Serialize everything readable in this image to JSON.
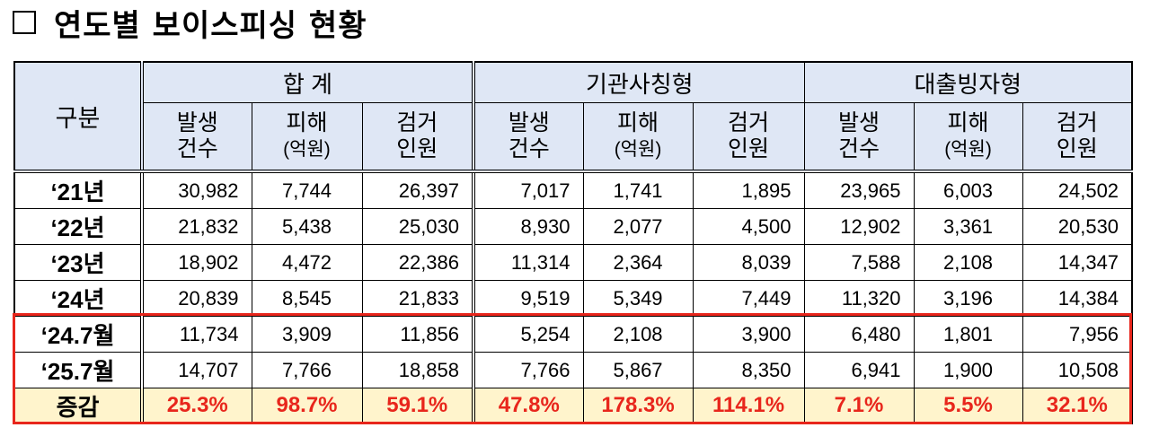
{
  "title": {
    "text": "연도별 보이스피싱 현황"
  },
  "header": {
    "row_label": "구분",
    "groups": [
      "합 계",
      "기관사칭형",
      "대출빙자형"
    ],
    "sub": [
      {
        "l1": "발생",
        "l2": "건수"
      },
      {
        "l1": "피해",
        "l2": "(억원)"
      },
      {
        "l1": "검거",
        "l2": "인원"
      }
    ]
  },
  "rows": [
    {
      "label": "‘21년",
      "values": [
        "30,982",
        "7,744",
        "26,397",
        "7,017",
        "1,741",
        "1,895",
        "23,965",
        "6,003",
        "24,502"
      ]
    },
    {
      "label": "‘22년",
      "values": [
        "21,832",
        "5,438",
        "25,030",
        "8,930",
        "2,077",
        "4,500",
        "12,902",
        "3,361",
        "20,530"
      ]
    },
    {
      "label": "‘23년",
      "values": [
        "18,902",
        "4,472",
        "22,386",
        "11,314",
        "2,364",
        "8,039",
        "7,588",
        "2,108",
        "14,347"
      ]
    },
    {
      "label": "‘24년",
      "values": [
        "20,839",
        "8,545",
        "21,833",
        "9,519",
        "5,349",
        "7,449",
        "11,320",
        "3,196",
        "14,384"
      ]
    },
    {
      "label": "‘24.7월",
      "values": [
        "11,734",
        "3,909",
        "11,856",
        "5,254",
        "2,108",
        "3,900",
        "6,480",
        "1,801",
        "7,956"
      ]
    },
    {
      "label": "‘25.7월",
      "values": [
        "14,707",
        "7,766",
        "18,858",
        "7,766",
        "5,867",
        "8,350",
        "6,941",
        "1,900",
        "10,508"
      ]
    }
  ],
  "total": {
    "label": "증감",
    "values": [
      "25.3%",
      "98.7%",
      "59.1%",
      "47.8%",
      "178.3%",
      "114.1%",
      "7.1%",
      "5.5%",
      "32.1%"
    ]
  },
  "colors": {
    "header_bg": "#dfe7f5",
    "total_bg": "#fff4cc",
    "highlight": "#e8261c"
  }
}
